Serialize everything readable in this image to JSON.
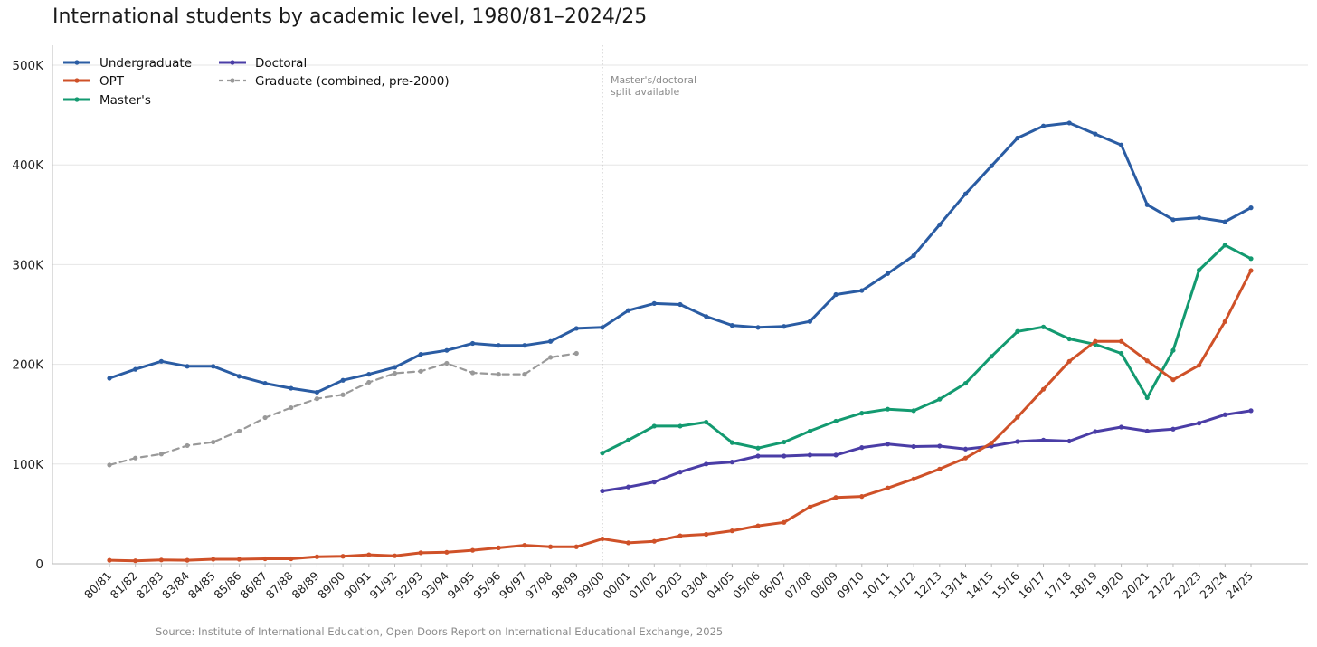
{
  "chart_data": {
    "type": "line",
    "title": "International students by academic level, 1980/81–2024/25",
    "xlabel": "",
    "ylabel": "",
    "ylim": [
      0,
      520000
    ],
    "yticks": [
      0,
      100000,
      200000,
      300000,
      400000,
      500000
    ],
    "ytick_labels": [
      "0",
      "100K",
      "200K",
      "300K",
      "400K",
      "500K"
    ],
    "grid": "horizontal",
    "legend_position": "top-left",
    "categories": [
      "80/81",
      "81/82",
      "82/83",
      "83/84",
      "84/85",
      "85/86",
      "86/87",
      "87/88",
      "88/89",
      "89/90",
      "90/91",
      "91/92",
      "92/93",
      "93/94",
      "94/95",
      "95/96",
      "96/97",
      "97/98",
      "98/99",
      "99/00",
      "00/01",
      "01/02",
      "02/03",
      "03/04",
      "04/05",
      "05/06",
      "06/07",
      "07/08",
      "08/09",
      "09/10",
      "10/11",
      "11/12",
      "12/13",
      "13/14",
      "14/15",
      "15/16",
      "16/17",
      "17/18",
      "18/19",
      "19/20",
      "20/21",
      "21/22",
      "22/23",
      "23/24",
      "24/25"
    ],
    "series": [
      {
        "name": "Undergraduate",
        "color": "#2a5ca3",
        "dashed": false,
        "values": [
          186000,
          195000,
          203000,
          198000,
          198000,
          188000,
          181000,
          176000,
          172000,
          184000,
          190000,
          197000,
          210000,
          214000,
          221000,
          219000,
          219000,
          223000,
          236000,
          237000,
          254000,
          261000,
          260000,
          248000,
          239000,
          237000,
          238000,
          243000,
          270000,
          274000,
          291000,
          309000,
          340000,
          371000,
          399000,
          427000,
          439000,
          442000,
          431000,
          420000,
          360000,
          345000,
          347000,
          343000,
          357000
        ]
      },
      {
        "name": "OPT",
        "color": "#cf5128",
        "dashed": false,
        "values": [
          3500,
          3000,
          3800,
          3500,
          4500,
          4500,
          5000,
          5000,
          7000,
          7500,
          9000,
          8000,
          11000,
          11500,
          13500,
          16000,
          18500,
          17000,
          17000,
          25000,
          21000,
          22500,
          28000,
          29500,
          33000,
          38000,
          41500,
          57000,
          66500,
          67500,
          76000,
          85000,
          95000,
          106000,
          121000,
          147000,
          175000,
          203000,
          223000,
          223000,
          203500,
          184500,
          199000,
          243000,
          294000
        ]
      },
      {
        "name": "Master's",
        "color": "#139a70",
        "dashed": false,
        "values": [
          null,
          null,
          null,
          null,
          null,
          null,
          null,
          null,
          null,
          null,
          null,
          null,
          null,
          null,
          null,
          null,
          null,
          null,
          null,
          111000,
          124000,
          138000,
          138000,
          142000,
          121500,
          116000,
          122000,
          133000,
          143000,
          151000,
          155000,
          153500,
          165000,
          181000,
          208000,
          233000,
          237500,
          225500,
          220000,
          211000,
          166500,
          214000,
          294500,
          319500,
          306000
        ]
      },
      {
        "name": "Doctoral",
        "color": "#4a3da6",
        "dashed": false,
        "values": [
          null,
          null,
          null,
          null,
          null,
          null,
          null,
          null,
          null,
          null,
          null,
          null,
          null,
          null,
          null,
          null,
          null,
          null,
          null,
          73000,
          77000,
          82000,
          92000,
          100000,
          102000,
          108000,
          108000,
          109000,
          109000,
          116500,
          120000,
          117500,
          118000,
          115000,
          118000,
          122500,
          124000,
          123000,
          132500,
          137000,
          133000,
          135000,
          141000,
          149500,
          153500
        ]
      },
      {
        "name": "Graduate (combined, pre-2000)",
        "color": "#999999",
        "dashed": true,
        "values": [
          99000,
          106000,
          110000,
          118500,
          122000,
          133000,
          146500,
          156500,
          165500,
          169500,
          182000,
          191000,
          193000,
          201000,
          191500,
          190000,
          190000,
          207000,
          211000,
          null,
          null,
          null,
          null,
          null,
          null,
          null,
          null,
          null,
          null,
          null,
          null,
          null,
          null,
          null,
          null,
          null,
          null,
          null,
          null,
          null,
          null,
          null,
          null,
          null,
          null
        ]
      }
    ],
    "legend": [
      [
        "Undergraduate",
        "Doctoral"
      ],
      [
        "OPT",
        "Graduate (combined, pre-2000)"
      ],
      [
        "Master's"
      ]
    ],
    "annotation": {
      "text_line1": "Master's/doctoral",
      "text_line2": "split available",
      "at_category": "99/00"
    }
  },
  "source": "Source: Institute of International Education, Open Doors Report on International Educational Exchange, 2025"
}
